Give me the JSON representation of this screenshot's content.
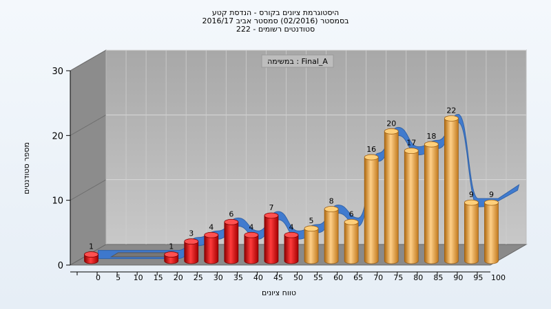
{
  "chart_data": {
    "type": "bar",
    "title_lines": [
      "היסטוגרמת ציונים בקורס - הנדסת קטע",
      "בסמסטר  (02/2016)  סמסטר אביב 2016/17",
      "222 - סטודנטים רשומים"
    ],
    "legend": "במשימה : Final_A",
    "ylabel": "מספר סטודנטים",
    "xlabel": "טווח ציונים",
    "ylim": [
      0,
      30
    ],
    "yticks": [
      0,
      10,
      20,
      30
    ],
    "xtick_labels": [
      "0",
      "5",
      "10",
      "15",
      "20",
      "25",
      "30",
      "35",
      "40",
      "45",
      "50",
      "55",
      "60",
      "65",
      "70",
      "75",
      "80",
      "85",
      "90",
      "95",
      "100"
    ],
    "bars": [
      {
        "bin": "0",
        "value": 1
      },
      {
        "bin": "5",
        "value": 0
      },
      {
        "bin": "10",
        "value": 0
      },
      {
        "bin": "15",
        "value": 0
      },
      {
        "bin": "20",
        "value": 1
      },
      {
        "bin": "25",
        "value": 3
      },
      {
        "bin": "30",
        "value": 4
      },
      {
        "bin": "35",
        "value": 6
      },
      {
        "bin": "40",
        "value": 4
      },
      {
        "bin": "45",
        "value": 7
      },
      {
        "bin": "50",
        "value": 4
      },
      {
        "bin": "55",
        "value": 5
      },
      {
        "bin": "60",
        "value": 8
      },
      {
        "bin": "65",
        "value": 6
      },
      {
        "bin": "70",
        "value": 16
      },
      {
        "bin": "75",
        "value": 20
      },
      {
        "bin": "80",
        "value": 17
      },
      {
        "bin": "85",
        "value": 18
      },
      {
        "bin": "90",
        "value": 22
      },
      {
        "bin": "95",
        "value": 9
      },
      {
        "bin": "100",
        "value": 9
      }
    ],
    "fail_threshold": 55,
    "colors": {
      "fail_bar": "#e01818",
      "pass_bar": "#f0b050",
      "trend": "#3a78d0",
      "plot_back": "#b9b9b9",
      "plot_floor": "#8a8a8a",
      "plot_side": "#8c8c8c"
    },
    "grid": true
  }
}
